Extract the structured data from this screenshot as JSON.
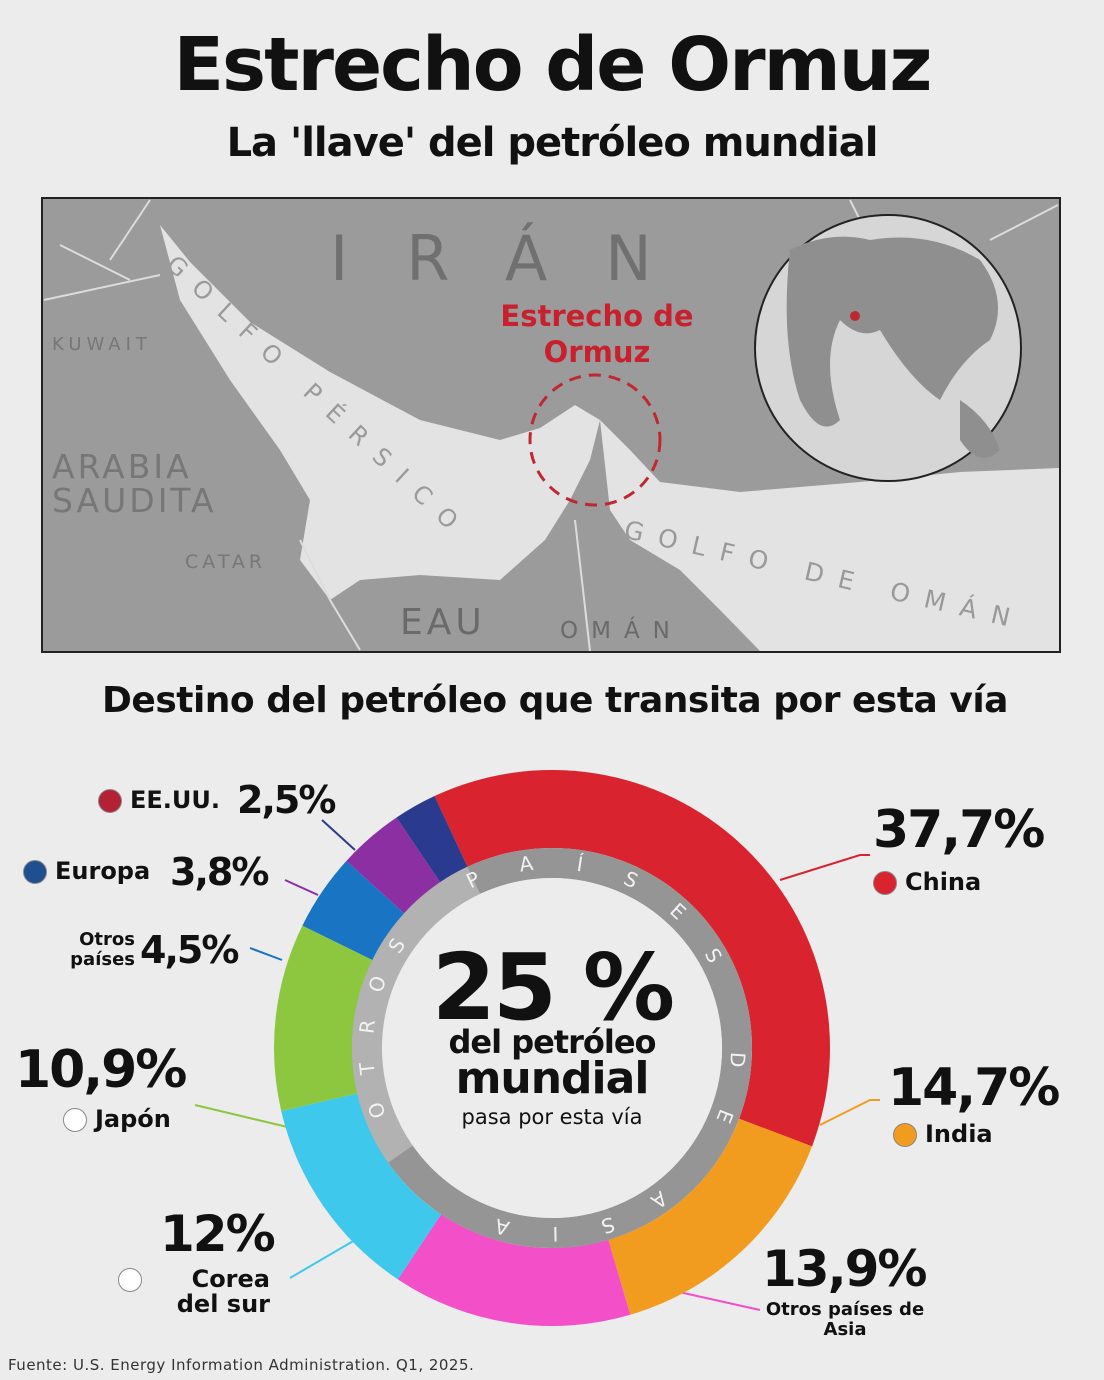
{
  "header": {
    "title": "Estrecho de Ormuz",
    "subtitle": "La 'llave' del petróleo mundial"
  },
  "map": {
    "country": "IRÁN",
    "gulf": "GOLFO PÉRSICO",
    "kuwait": "KUWAIT",
    "saudi": "ARABIA SAUDITA",
    "qatar": "CATAR",
    "uae": "EAU",
    "oman": "OMÁN",
    "gulf_oman": "GOLFO DE OMÁN",
    "strait": "Estrecho de Ormuz"
  },
  "chart_data": {
    "type": "donut",
    "title": "Destino del petróleo que transita por esta vía",
    "categories": [
      "China",
      "India",
      "Otros países de Asia",
      "Corea del sur",
      "Japón",
      "Otros países",
      "Europa",
      "EE.UU."
    ],
    "values": [
      37.7,
      14.7,
      13.9,
      12,
      10.9,
      4.5,
      3.8,
      2.5
    ],
    "value_labels": [
      "37,7%",
      "14,7%",
      "13,9%",
      "12%",
      "10,9%",
      "4,5%",
      "3,8%",
      "2,5%"
    ],
    "colors": [
      "#d9232e",
      "#f29c1f",
      "#f24fc8",
      "#3ec8ec",
      "#8dc63f",
      "#1a74c4",
      "#8c2fa3",
      "#2a3a8f"
    ],
    "center": {
      "value": "25 %",
      "line1": "del petróleo",
      "line2": "mundial",
      "line3": "pasa por esta vía"
    },
    "ring_labels": [
      "PAÍSES DE ASIA",
      "OTROS"
    ]
  },
  "source": "Fuente: U.S. Energy Information Administration. Q1, 2025."
}
